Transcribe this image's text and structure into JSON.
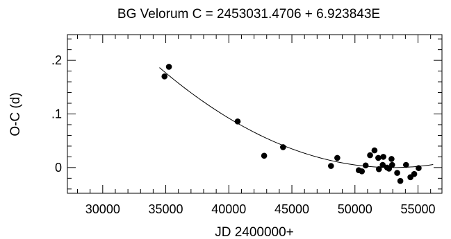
{
  "chart_data": {
    "type": "scatter",
    "title": "BG Velorum   C = 2453031.4706 + 6.923843E",
    "xlabel": "JD 2400000+",
    "ylabel": "O-C (d)",
    "xlim": [
      27200,
      56900
    ],
    "ylim": [
      -0.048,
      0.248
    ],
    "x_ticks": [
      30000,
      35000,
      40000,
      45000,
      50000,
      55000
    ],
    "x_tick_labels": [
      "30000",
      "35000",
      "40000",
      "45000",
      "50000",
      "55000"
    ],
    "y_ticks": [
      0,
      0.1,
      0.2
    ],
    "y_tick_labels": [
      "0",
      ".1",
      ".2"
    ],
    "grid": false,
    "series": [
      {
        "points": [
          {
            "x": 34900,
            "y": 0.17
          },
          {
            "x": 35250,
            "y": 0.188
          },
          {
            "x": 40700,
            "y": 0.086
          },
          {
            "x": 42800,
            "y": 0.022
          },
          {
            "x": 44300,
            "y": 0.038
          },
          {
            "x": 48100,
            "y": 0.003
          },
          {
            "x": 48600,
            "y": 0.018
          },
          {
            "x": 50300,
            "y": -0.005
          },
          {
            "x": 50550,
            "y": -0.007
          },
          {
            "x": 50850,
            "y": 0.004
          },
          {
            "x": 51200,
            "y": 0.023
          },
          {
            "x": 51550,
            "y": 0.032
          },
          {
            "x": 51850,
            "y": 0.018
          },
          {
            "x": 51900,
            "y": -0.003
          },
          {
            "x": 52200,
            "y": 0.005
          },
          {
            "x": 52250,
            "y": 0.02
          },
          {
            "x": 52550,
            "y": 0.0
          },
          {
            "x": 52700,
            "y": -0.002
          },
          {
            "x": 52900,
            "y": 0.016
          },
          {
            "x": 52950,
            "y": 0.005
          },
          {
            "x": 53350,
            "y": -0.01
          },
          {
            "x": 53600,
            "y": -0.025
          },
          {
            "x": 54050,
            "y": 0.005
          },
          {
            "x": 54400,
            "y": -0.018
          },
          {
            "x": 54700,
            "y": -0.012
          },
          {
            "x": 55050,
            "y": -0.001
          }
        ]
      }
    ],
    "fit_curve": {
      "type": "quadratic",
      "x_range": [
        34500,
        56200
      ],
      "vertex_x": 53000,
      "vertex_y": 0.0,
      "coefficient": 5.45e-10
    }
  }
}
